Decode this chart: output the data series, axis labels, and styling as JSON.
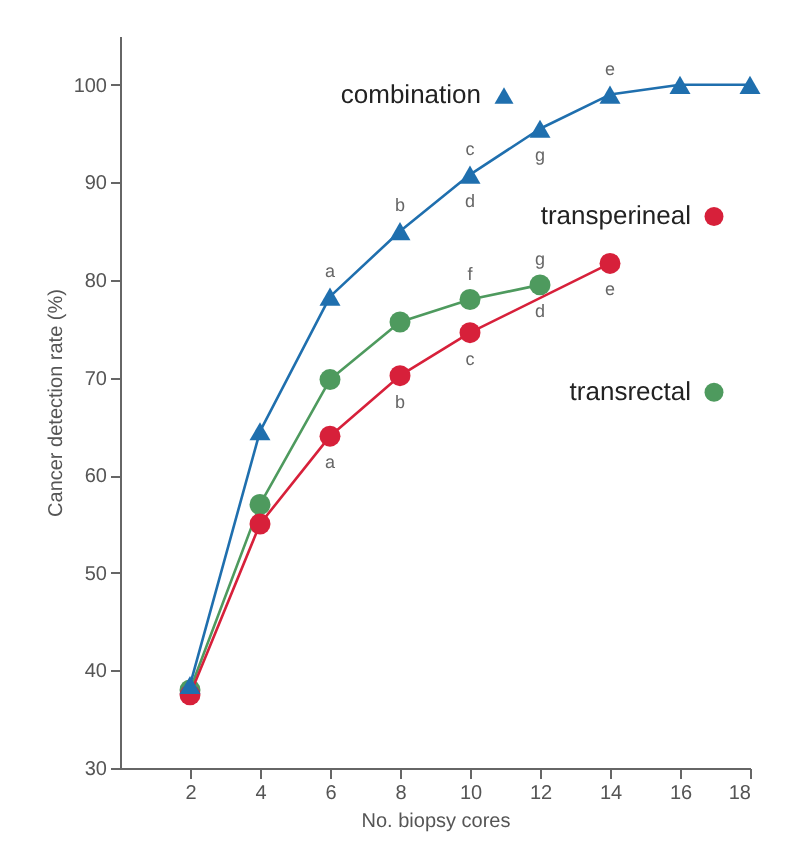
{
  "chart_data": {
    "type": "line",
    "xlabel": "No. biopsy cores",
    "ylabel": "Cancer detection rate (%)",
    "xlim": [
      0,
      18
    ],
    "xticks": [
      2,
      4,
      6,
      8,
      10,
      12,
      14,
      16,
      18
    ],
    "ylim": [
      30,
      105
    ],
    "yticks": [
      30,
      40,
      50,
      60,
      70,
      80,
      90,
      100
    ],
    "grid": false,
    "legend": "right",
    "line_style": "solid",
    "series": [
      {
        "name": "combination",
        "color": "#1f6fae",
        "marker": "triangle",
        "x": [
          2,
          4,
          6,
          8,
          10,
          12,
          14,
          16,
          18
        ],
        "values": [
          38.5,
          64.5,
          78.3,
          85,
          90.8,
          95.5,
          99,
          100,
          100
        ]
      },
      {
        "name": "transperineal",
        "color": "#d7203a",
        "marker": "circle",
        "x": [
          2,
          4,
          6,
          8,
          10,
          14
        ],
        "values": [
          37.5,
          55,
          64,
          70.2,
          74.6,
          81.7
        ]
      },
      {
        "name": "transrectal",
        "color": "#4e9a5e",
        "marker": "circle",
        "x": [
          2,
          4,
          6,
          8,
          10,
          12
        ],
        "values": [
          38,
          57,
          69.8,
          75.7,
          78,
          79.5
        ]
      }
    ],
    "annotations": [
      {
        "text": "a",
        "x": 6,
        "y": 78.3
      },
      {
        "text": "b",
        "x": 8,
        "y": 85
      },
      {
        "text": "c",
        "x": 10,
        "y": 90.8
      },
      {
        "text": "d",
        "x": 10,
        "y": 90.8
      },
      {
        "text": "g",
        "x": 12,
        "y": 95.5
      },
      {
        "text": "e",
        "x": 14,
        "y": 99
      },
      {
        "text": "f",
        "x": 10,
        "y": 78
      },
      {
        "text": "g",
        "x": 12,
        "y": 79.5
      },
      {
        "text": "a",
        "x": 6,
        "y": 64
      },
      {
        "text": "b",
        "x": 8,
        "y": 70.2
      },
      {
        "text": "c",
        "x": 10,
        "y": 74.6
      },
      {
        "text": "d",
        "x": 12,
        "y": 79.5
      },
      {
        "text": "e",
        "x": 14,
        "y": 81.7
      }
    ]
  }
}
